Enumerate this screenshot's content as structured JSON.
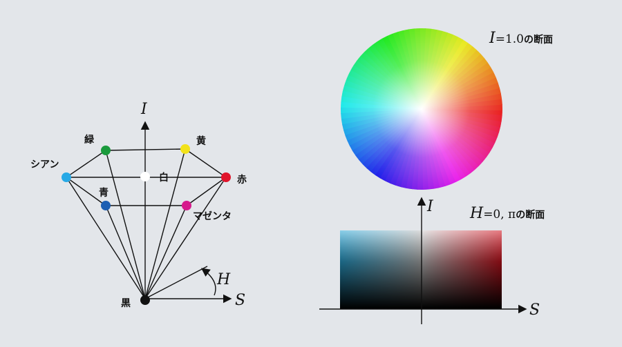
{
  "hexcone": {
    "vertices": [
      {
        "id": "green",
        "label": "緑",
        "color": "#1a9a3c"
      },
      {
        "id": "yellow",
        "label": "黄",
        "color": "#f2e21a"
      },
      {
        "id": "cyan",
        "label": "シアン",
        "color": "#27a9e6"
      },
      {
        "id": "white",
        "label": "白",
        "color": "#ffffff"
      },
      {
        "id": "red",
        "label": "赤",
        "color": "#e0152b"
      },
      {
        "id": "blue",
        "label": "青",
        "color": "#1d5fb3"
      },
      {
        "id": "magenta",
        "label": "マゼンタ",
        "color": "#d61a8c"
      },
      {
        "id": "black",
        "label": "黒",
        "color": "#111111"
      }
    ],
    "axis_i": "I",
    "axis_h": "H",
    "axis_s": "S"
  },
  "wheel": {
    "caption_var": "I",
    "caption_eq": "=1.0",
    "caption_jp": "の断面"
  },
  "section": {
    "axis_i": "I",
    "axis_s": "S",
    "caption_var": "H",
    "caption_eq": "=0, π",
    "caption_jp": "の断面"
  }
}
